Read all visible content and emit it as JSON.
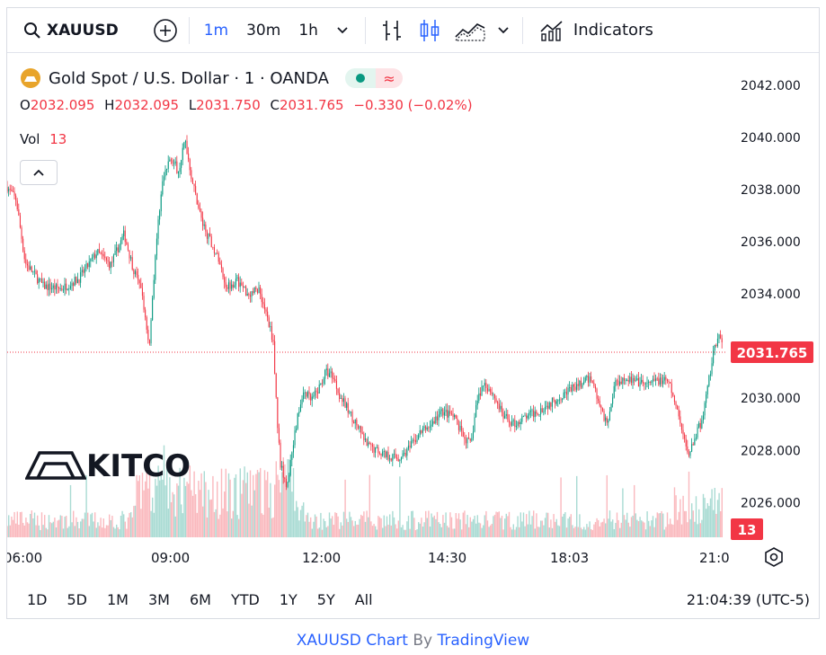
{
  "toolbar": {
    "symbol": "XAUUSD",
    "intervals": [
      "1m",
      "30m",
      "1h"
    ],
    "active_interval": "1m",
    "indicators_label": "Indicators",
    "icons": [
      "search-icon",
      "add-compare-icon",
      "chevron-down-icon",
      "bar-chart-icon",
      "candles-icon",
      "area-chart-icon",
      "chevron-down-icon",
      "indicators-icon"
    ]
  },
  "legend": {
    "title": "Gold Spot / U.S. Dollar · 1 · OANDA",
    "o_label": "O",
    "o_value": "2032.095",
    "h_label": "H",
    "h_value": "2032.095",
    "l_label": "L",
    "l_value": "2031.750",
    "c_label": "C",
    "c_value": "2031.765",
    "change": "−0.330 (−0.02%)",
    "vol_label": "Vol",
    "vol_value": "13"
  },
  "watermark": {
    "brand": "KITCO"
  },
  "chart_data": {
    "type": "candlestick",
    "x_ticks": [
      "06:00",
      "09:00",
      "12:00",
      "14:30",
      "18:03",
      "21:0"
    ],
    "y_ticks": [
      "2042.000",
      "2040.000",
      "2038.000",
      "2036.000",
      "2034.000",
      "2030.000",
      "2028.000",
      "2026.000"
    ],
    "ylim": [
      2024.6,
      2043.2
    ],
    "last_price": "2031.765",
    "last_volume": "13",
    "price_path": [
      [
        0,
        2038.1
      ],
      [
        10,
        2037.6
      ],
      [
        20,
        2035.2
      ],
      [
        40,
        2034.3
      ],
      [
        60,
        2034.2
      ],
      [
        80,
        2034.6
      ],
      [
        100,
        2035.6
      ],
      [
        115,
        2035.1
      ],
      [
        130,
        2036.3
      ],
      [
        140,
        2035.0
      ],
      [
        150,
        2034.0
      ],
      [
        158,
        2032.0
      ],
      [
        165,
        2035.6
      ],
      [
        172,
        2038.2
      ],
      [
        182,
        2039.3
      ],
      [
        190,
        2038.7
      ],
      [
        198,
        2039.9
      ],
      [
        206,
        2038.3
      ],
      [
        218,
        2036.6
      ],
      [
        232,
        2035.6
      ],
      [
        244,
        2034.3
      ],
      [
        256,
        2034.5
      ],
      [
        268,
        2034.0
      ],
      [
        280,
        2034.2
      ],
      [
        290,
        2033.0
      ],
      [
        296,
        2032.2
      ],
      [
        300,
        2029.3
      ],
      [
        304,
        2027.5
      ],
      [
        310,
        2026.6
      ],
      [
        316,
        2027.6
      ],
      [
        322,
        2029.1
      ],
      [
        330,
        2030.3
      ],
      [
        338,
        2029.9
      ],
      [
        346,
        2030.3
      ],
      [
        354,
        2031.0
      ],
      [
        362,
        2030.9
      ],
      [
        370,
        2030.1
      ],
      [
        380,
        2029.5
      ],
      [
        390,
        2028.9
      ],
      [
        400,
        2028.2
      ],
      [
        412,
        2028.0
      ],
      [
        424,
        2027.8
      ],
      [
        436,
        2027.7
      ],
      [
        448,
        2028.1
      ],
      [
        460,
        2028.7
      ],
      [
        472,
        2029.0
      ],
      [
        484,
        2029.5
      ],
      [
        496,
        2029.3
      ],
      [
        508,
        2028.5
      ],
      [
        516,
        2028.2
      ],
      [
        522,
        2029.8
      ],
      [
        530,
        2030.6
      ],
      [
        540,
        2030.2
      ],
      [
        552,
        2029.3
      ],
      [
        564,
        2029.0
      ],
      [
        578,
        2029.3
      ],
      [
        590,
        2029.5
      ],
      [
        604,
        2029.8
      ],
      [
        620,
        2030.2
      ],
      [
        636,
        2030.5
      ],
      [
        650,
        2030.8
      ],
      [
        660,
        2029.6
      ],
      [
        668,
        2029.0
      ],
      [
        676,
        2030.6
      ],
      [
        688,
        2030.8
      ],
      [
        700,
        2030.6
      ],
      [
        712,
        2030.5
      ],
      [
        724,
        2030.7
      ],
      [
        736,
        2030.6
      ],
      [
        744,
        2029.7
      ],
      [
        752,
        2028.6
      ],
      [
        758,
        2027.8
      ],
      [
        766,
        2028.6
      ],
      [
        774,
        2029.2
      ],
      [
        780,
        2030.6
      ],
      [
        786,
        2031.8
      ],
      [
        792,
        2032.3
      ],
      [
        798,
        2031.8
      ]
    ]
  },
  "bottom": {
    "ranges": [
      "1D",
      "5D",
      "1M",
      "3M",
      "6M",
      "YTD",
      "1Y",
      "5Y",
      "All"
    ],
    "clock": "21:04:39 (UTC-5)"
  },
  "footer": {
    "symbol_part": "XAUUSD Chart",
    "by_part": "By",
    "provider_part": "TradingView"
  },
  "colors": {
    "up": "#089981",
    "down": "#f23645",
    "accent": "#2962ff",
    "price_label": "#f23645"
  }
}
